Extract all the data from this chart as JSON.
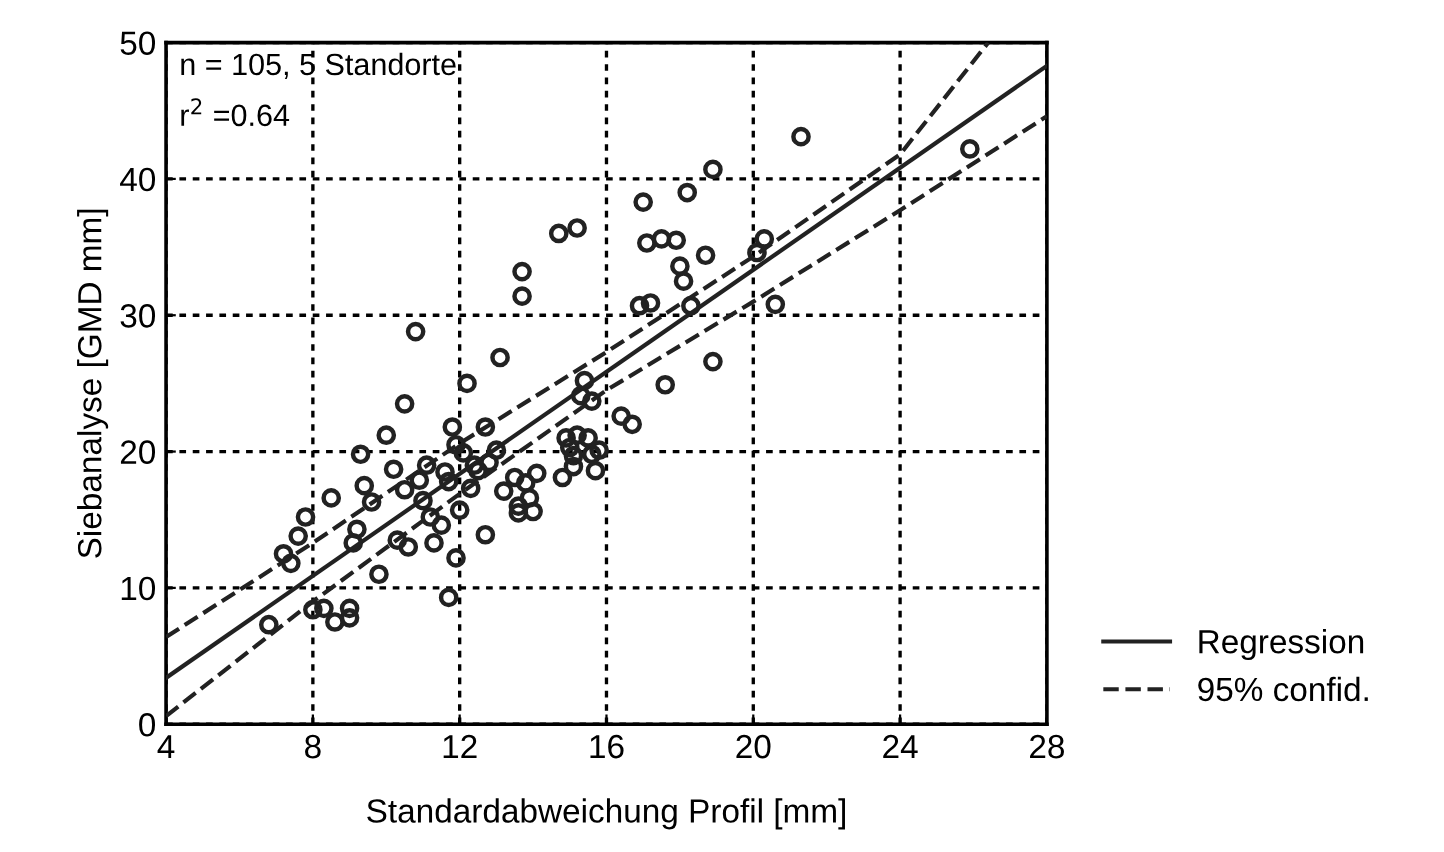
{
  "chart_data": {
    "type": "scatter",
    "xlabel": "Standardabweichung Profil [mm]",
    "ylabel": "Siebanalyse [GMD mm]",
    "annotations": [
      "n = 105, 5 Standorte",
      "r$^{2}$ =0.64"
    ],
    "xlim": [
      4,
      28
    ],
    "ylim": [
      0,
      50
    ],
    "xticks": [
      4,
      8,
      12,
      16,
      20,
      24,
      28
    ],
    "yticks": [
      0,
      10,
      20,
      30,
      40,
      50
    ],
    "grid": true,
    "legend": "bottom right",
    "marker": "circle",
    "series": [
      {
        "color": "#222222",
        "x": [
          6.8,
          7.2,
          7.4,
          7.6,
          7.8,
          8.0,
          8.3,
          8.5,
          8.6,
          9.0,
          9.0,
          9.1,
          9.2,
          9.3,
          9.4,
          9.6,
          9.8,
          10.0,
          10.2,
          10.3,
          10.5,
          10.5,
          10.6,
          10.8,
          10.9,
          11.0,
          11.1,
          11.2,
          11.3,
          11.5,
          11.6,
          11.7,
          11.7,
          11.8,
          11.9,
          11.9,
          12.0,
          12.1,
          12.2,
          12.3,
          12.4,
          12.5,
          12.7,
          12.7,
          12.8,
          13.0,
          13.1,
          13.2,
          13.5,
          13.6,
          13.6,
          13.7,
          13.7,
          13.8,
          13.9,
          14.0,
          14.1,
          14.7,
          14.8,
          14.9,
          15.0,
          15.1,
          15.1,
          15.2,
          15.2,
          15.3,
          15.4,
          15.5,
          15.6,
          15.6,
          15.7,
          15.8,
          16.4,
          16.7,
          16.9,
          17.0,
          17.1,
          17.2,
          17.5,
          17.6,
          17.9,
          18.0,
          18.1,
          18.2,
          18.3,
          18.7,
          18.9,
          18.9,
          20.1,
          20.3,
          20.6,
          21.3,
          25.9
        ],
        "values": [
          7.3,
          12.5,
          11.8,
          13.8,
          15.2,
          8.4,
          8.5,
          16.6,
          7.5,
          8.5,
          7.8,
          13.3,
          14.3,
          19.8,
          17.5,
          16.3,
          11.0,
          21.2,
          18.7,
          13.5,
          23.5,
          17.2,
          13.0,
          28.8,
          17.9,
          16.4,
          19.0,
          15.2,
          13.3,
          14.6,
          18.5,
          9.3,
          17.8,
          21.8,
          20.5,
          12.2,
          15.7,
          19.9,
          25.0,
          17.3,
          19.0,
          18.6,
          21.8,
          13.9,
          19.2,
          20.1,
          26.9,
          17.1,
          18.1,
          16.0,
          15.5,
          33.2,
          31.4,
          17.7,
          16.6,
          15.6,
          18.4,
          36.0,
          18.1,
          21.0,
          20.3,
          19.7,
          18.9,
          36.4,
          21.2,
          24.1,
          25.2,
          21.0,
          19.8,
          23.7,
          18.6,
          20.1,
          22.6,
          22.0,
          30.7,
          38.3,
          35.3,
          30.9,
          35.6,
          24.9,
          35.5,
          33.6,
          32.5,
          39.0,
          30.7,
          34.4,
          40.7,
          26.6,
          34.6,
          35.6,
          30.8,
          43.1,
          42.2
        ]
      },
      {
        "type": "line",
        "name": "Regression",
        "color": "#222222",
        "line_style": "solid",
        "marker": "none",
        "x": [
          4,
          28
        ],
        "values": [
          3.4,
          48.3
        ]
      },
      {
        "type": "line",
        "name": "95% confid.",
        "color": "#222222",
        "line_style": "dashed",
        "marker": "none",
        "x": [
          4,
          8,
          12,
          16,
          20,
          24,
          26.4
        ],
        "values": [
          6.4,
          13.3,
          20.6,
          27.3,
          34.3,
          41.8,
          50
        ]
      },
      {
        "type": "line",
        "color": "#222222",
        "line_style": "dashed",
        "marker": "none",
        "x": [
          4,
          8,
          12,
          16,
          20,
          24,
          28
        ],
        "values": [
          0.6,
          9.0,
          16.9,
          24.5,
          31.0,
          37.7,
          44.6
        ]
      }
    ]
  }
}
